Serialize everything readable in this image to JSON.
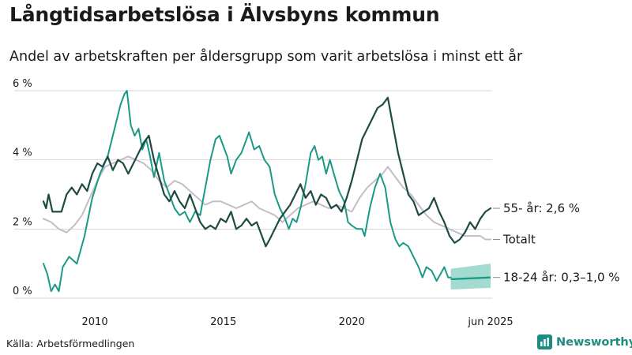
{
  "header": {
    "title": "Långtidsarbetslösa i Älvsbyns kommun",
    "subtitle": "Andel av arbetskraften per åldersgrupp som varit arbetslösa i minst ett år"
  },
  "footer": {
    "source": "Källa: Arbetsförmedlingen",
    "brand": "Newsworthy"
  },
  "colors": {
    "age_55_plus": "#1f4a42",
    "total": "#c3bdc9",
    "age_18_24": "#1a9a86",
    "band": "#85cfc2",
    "brand": "#1d8c80"
  },
  "chart_data": {
    "type": "line",
    "title": "Långtidsarbetslösa i Älvsbyns kommun",
    "subtitle": "Andel av arbetskraften per åldersgrupp som varit arbetslösa i minst ett år",
    "ylim": [
      0,
      6
    ],
    "y_ticks": [
      0,
      2,
      4,
      6
    ],
    "y_tick_labels": [
      "0 %",
      "2 %",
      "4 %",
      "6 %"
    ],
    "x_ticks": [
      2010,
      2015,
      2020,
      2025.4
    ],
    "x_tick_labels": [
      "2010",
      "2015",
      "2020",
      "jun 2025"
    ],
    "grid": "horizontal",
    "series": [
      {
        "key": "total",
        "name": "Totalt",
        "label": "Totalt",
        "points": [
          [
            2008.0,
            2.3
          ],
          [
            2008.3,
            2.2
          ],
          [
            2008.6,
            2.0
          ],
          [
            2008.9,
            1.9
          ],
          [
            2009.2,
            2.1
          ],
          [
            2009.5,
            2.4
          ],
          [
            2009.8,
            2.9
          ],
          [
            2010.1,
            3.4
          ],
          [
            2010.4,
            3.8
          ],
          [
            2010.7,
            3.9
          ],
          [
            2011.0,
            4.0
          ],
          [
            2011.3,
            4.1
          ],
          [
            2011.6,
            4.0
          ],
          [
            2011.9,
            3.9
          ],
          [
            2012.2,
            3.7
          ],
          [
            2012.5,
            3.4
          ],
          [
            2012.8,
            3.2
          ],
          [
            2013.1,
            3.4
          ],
          [
            2013.4,
            3.3
          ],
          [
            2013.7,
            3.1
          ],
          [
            2014.0,
            2.9
          ],
          [
            2014.3,
            2.7
          ],
          [
            2014.6,
            2.8
          ],
          [
            2014.9,
            2.8
          ],
          [
            2015.2,
            2.7
          ],
          [
            2015.5,
            2.6
          ],
          [
            2015.8,
            2.7
          ],
          [
            2016.1,
            2.8
          ],
          [
            2016.4,
            2.6
          ],
          [
            2016.7,
            2.5
          ],
          [
            2017.0,
            2.4
          ],
          [
            2017.3,
            2.2
          ],
          [
            2017.6,
            2.4
          ],
          [
            2017.9,
            2.6
          ],
          [
            2018.2,
            2.7
          ],
          [
            2018.5,
            2.8
          ],
          [
            2018.8,
            2.7
          ],
          [
            2019.1,
            2.6
          ],
          [
            2019.4,
            2.7
          ],
          [
            2019.7,
            2.6
          ],
          [
            2020.0,
            2.5
          ],
          [
            2020.3,
            2.9
          ],
          [
            2020.6,
            3.2
          ],
          [
            2020.9,
            3.4
          ],
          [
            2021.2,
            3.6
          ],
          [
            2021.4,
            3.8
          ],
          [
            2021.7,
            3.5
          ],
          [
            2022.0,
            3.2
          ],
          [
            2022.3,
            3.0
          ],
          [
            2022.6,
            2.7
          ],
          [
            2022.9,
            2.4
          ],
          [
            2023.2,
            2.2
          ],
          [
            2023.5,
            2.1
          ],
          [
            2023.8,
            2.0
          ],
          [
            2024.1,
            1.9
          ],
          [
            2024.4,
            1.8
          ],
          [
            2024.7,
            1.8
          ],
          [
            2025.0,
            1.8
          ],
          [
            2025.2,
            1.7
          ],
          [
            2025.4,
            1.7
          ]
        ]
      },
      {
        "key": "age_18_24",
        "name": "18-24 år",
        "label": "18-24 år: 0,3–1,0 %",
        "points": [
          [
            2008.0,
            1.0
          ],
          [
            2008.15,
            0.7
          ],
          [
            2008.3,
            0.2
          ],
          [
            2008.45,
            0.4
          ],
          [
            2008.6,
            0.2
          ],
          [
            2008.75,
            0.9
          ],
          [
            2009.0,
            1.2
          ],
          [
            2009.3,
            1.0
          ],
          [
            2009.6,
            1.8
          ],
          [
            2009.9,
            2.9
          ],
          [
            2010.2,
            3.6
          ],
          [
            2010.5,
            4.1
          ],
          [
            2010.7,
            4.7
          ],
          [
            2010.9,
            5.3
          ],
          [
            2011.0,
            5.6
          ],
          [
            2011.15,
            5.9
          ],
          [
            2011.25,
            6.0
          ],
          [
            2011.4,
            5.0
          ],
          [
            2011.55,
            4.7
          ],
          [
            2011.7,
            4.9
          ],
          [
            2011.85,
            4.3
          ],
          [
            2012.0,
            4.6
          ],
          [
            2012.15,
            4.1
          ],
          [
            2012.3,
            3.5
          ],
          [
            2012.5,
            4.2
          ],
          [
            2012.7,
            3.4
          ],
          [
            2012.9,
            3.0
          ],
          [
            2013.1,
            2.6
          ],
          [
            2013.3,
            2.4
          ],
          [
            2013.5,
            2.5
          ],
          [
            2013.7,
            2.2
          ],
          [
            2013.9,
            2.5
          ],
          [
            2014.1,
            2.4
          ],
          [
            2014.3,
            3.2
          ],
          [
            2014.5,
            4.0
          ],
          [
            2014.7,
            4.6
          ],
          [
            2014.85,
            4.7
          ],
          [
            2015.0,
            4.4
          ],
          [
            2015.15,
            4.1
          ],
          [
            2015.3,
            3.6
          ],
          [
            2015.5,
            4.0
          ],
          [
            2015.7,
            4.2
          ],
          [
            2015.85,
            4.5
          ],
          [
            2016.0,
            4.8
          ],
          [
            2016.2,
            4.3
          ],
          [
            2016.4,
            4.4
          ],
          [
            2016.6,
            4.0
          ],
          [
            2016.8,
            3.8
          ],
          [
            2017.0,
            3.0
          ],
          [
            2017.2,
            2.6
          ],
          [
            2017.4,
            2.3
          ],
          [
            2017.55,
            2.0
          ],
          [
            2017.7,
            2.3
          ],
          [
            2017.85,
            2.2
          ],
          [
            2018.0,
            2.6
          ],
          [
            2018.2,
            3.3
          ],
          [
            2018.4,
            4.2
          ],
          [
            2018.55,
            4.4
          ],
          [
            2018.7,
            4.0
          ],
          [
            2018.85,
            4.1
          ],
          [
            2019.0,
            3.6
          ],
          [
            2019.15,
            4.0
          ],
          [
            2019.3,
            3.6
          ],
          [
            2019.5,
            3.1
          ],
          [
            2019.7,
            2.8
          ],
          [
            2019.85,
            2.2
          ],
          [
            2020.0,
            2.1
          ],
          [
            2020.2,
            2.0
          ],
          [
            2020.4,
            2.0
          ],
          [
            2020.5,
            1.8
          ],
          [
            2020.7,
            2.6
          ],
          [
            2020.9,
            3.2
          ],
          [
            2021.1,
            3.6
          ],
          [
            2021.3,
            3.2
          ],
          [
            2021.5,
            2.2
          ],
          [
            2021.7,
            1.7
          ],
          [
            2021.85,
            1.5
          ],
          [
            2022.0,
            1.6
          ],
          [
            2022.2,
            1.5
          ],
          [
            2022.4,
            1.2
          ],
          [
            2022.6,
            0.9
          ],
          [
            2022.75,
            0.6
          ],
          [
            2022.9,
            0.9
          ],
          [
            2023.1,
            0.8
          ],
          [
            2023.3,
            0.5
          ],
          [
            2023.45,
            0.7
          ],
          [
            2023.6,
            0.9
          ],
          [
            2023.75,
            0.6
          ],
          [
            2023.85,
            0.6
          ]
        ]
      },
      {
        "key": "age_55_plus",
        "name": "55- år",
        "label": "55- år: 2,6 %",
        "points": [
          [
            2008.0,
            2.8
          ],
          [
            2008.1,
            2.6
          ],
          [
            2008.2,
            3.0
          ],
          [
            2008.35,
            2.5
          ],
          [
            2008.5,
            2.5
          ],
          [
            2008.7,
            2.5
          ],
          [
            2008.9,
            3.0
          ],
          [
            2009.1,
            3.2
          ],
          [
            2009.3,
            3.0
          ],
          [
            2009.5,
            3.3
          ],
          [
            2009.7,
            3.1
          ],
          [
            2009.9,
            3.6
          ],
          [
            2010.1,
            3.9
          ],
          [
            2010.3,
            3.8
          ],
          [
            2010.5,
            4.1
          ],
          [
            2010.7,
            3.7
          ],
          [
            2010.9,
            4.0
          ],
          [
            2011.1,
            3.9
          ],
          [
            2011.3,
            3.6
          ],
          [
            2011.5,
            3.9
          ],
          [
            2011.7,
            4.2
          ],
          [
            2011.9,
            4.5
          ],
          [
            2012.1,
            4.7
          ],
          [
            2012.3,
            4.0
          ],
          [
            2012.5,
            3.5
          ],
          [
            2012.7,
            3.0
          ],
          [
            2012.9,
            2.8
          ],
          [
            2013.1,
            3.1
          ],
          [
            2013.3,
            2.8
          ],
          [
            2013.5,
            2.6
          ],
          [
            2013.7,
            3.0
          ],
          [
            2013.9,
            2.6
          ],
          [
            2014.1,
            2.2
          ],
          [
            2014.3,
            2.0
          ],
          [
            2014.5,
            2.1
          ],
          [
            2014.7,
            2.0
          ],
          [
            2014.9,
            2.3
          ],
          [
            2015.1,
            2.2
          ],
          [
            2015.3,
            2.5
          ],
          [
            2015.5,
            2.0
          ],
          [
            2015.7,
            2.1
          ],
          [
            2015.9,
            2.3
          ],
          [
            2016.1,
            2.1
          ],
          [
            2016.3,
            2.2
          ],
          [
            2016.5,
            1.8
          ],
          [
            2016.65,
            1.5
          ],
          [
            2016.8,
            1.7
          ],
          [
            2017.0,
            2.0
          ],
          [
            2017.2,
            2.3
          ],
          [
            2017.4,
            2.5
          ],
          [
            2017.6,
            2.7
          ],
          [
            2017.8,
            3.0
          ],
          [
            2018.0,
            3.3
          ],
          [
            2018.2,
            2.9
          ],
          [
            2018.4,
            3.1
          ],
          [
            2018.6,
            2.7
          ],
          [
            2018.8,
            3.0
          ],
          [
            2019.0,
            2.9
          ],
          [
            2019.2,
            2.6
          ],
          [
            2019.4,
            2.7
          ],
          [
            2019.6,
            2.5
          ],
          [
            2019.8,
            2.9
          ],
          [
            2020.0,
            3.4
          ],
          [
            2020.2,
            4.0
          ],
          [
            2020.4,
            4.6
          ],
          [
            2020.6,
            4.9
          ],
          [
            2020.8,
            5.2
          ],
          [
            2021.0,
            5.5
          ],
          [
            2021.2,
            5.6
          ],
          [
            2021.4,
            5.8
          ],
          [
            2021.6,
            5.0
          ],
          [
            2021.8,
            4.2
          ],
          [
            2022.0,
            3.6
          ],
          [
            2022.2,
            3.0
          ],
          [
            2022.4,
            2.8
          ],
          [
            2022.6,
            2.4
          ],
          [
            2022.8,
            2.5
          ],
          [
            2023.0,
            2.6
          ],
          [
            2023.2,
            2.9
          ],
          [
            2023.4,
            2.5
          ],
          [
            2023.6,
            2.2
          ],
          [
            2023.8,
            1.8
          ],
          [
            2024.0,
            1.6
          ],
          [
            2024.2,
            1.7
          ],
          [
            2024.4,
            1.9
          ],
          [
            2024.6,
            2.2
          ],
          [
            2024.8,
            2.0
          ],
          [
            2025.0,
            2.3
          ],
          [
            2025.2,
            2.5
          ],
          [
            2025.4,
            2.6
          ]
        ]
      }
    ],
    "forecast": {
      "series": "18-24 år",
      "start": 2023.85,
      "end": 2025.4,
      "line_start": 0.55,
      "line_end": 0.6,
      "low_start": 0.25,
      "low_end": 0.3,
      "high_start": 0.85,
      "high_end": 1.0
    }
  }
}
